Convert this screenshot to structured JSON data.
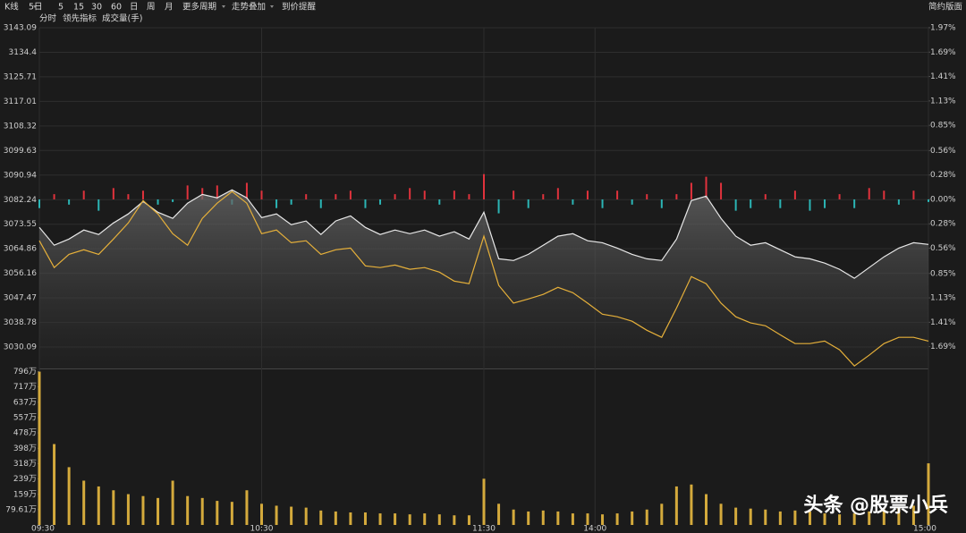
{
  "toolbar": {
    "items": [
      "K线",
      "5日",
      "5",
      "15",
      "30",
      "60",
      "日",
      "周",
      "月",
      "更多周期",
      "走势叠加",
      "到价提醒"
    ],
    "right": "简约版面"
  },
  "chart_data": [
    {
      "type": "line",
      "x": [
        0,
        4,
        8,
        12,
        16,
        20,
        24,
        28,
        32,
        36,
        40,
        44,
        48,
        52,
        56,
        60,
        64,
        68,
        72,
        76,
        80,
        84,
        88,
        92,
        96,
        100,
        104,
        108,
        112,
        116,
        120,
        124,
        128,
        132,
        136,
        140,
        144,
        148,
        152,
        156,
        160,
        164,
        168,
        172,
        176,
        180,
        184,
        188,
        192,
        196,
        200,
        204,
        208,
        212,
        216,
        220,
        224,
        228,
        232,
        236,
        240
      ],
      "xlim": [
        0,
        240
      ],
      "ylim": [
        3022.5,
        3143.09
      ],
      "yticks": [
        3143.09,
        3134.4,
        3125.71,
        3117.01,
        3108.32,
        3099.63,
        3090.94,
        3082.24,
        3073.55,
        3064.86,
        3056.16,
        3047.47,
        3038.78,
        3030.09
      ],
      "y2lim": [
        -1.94,
        1.97
      ],
      "y2ticks": [
        {
          "value": 1.97,
          "label": "1.97%"
        },
        {
          "value": 1.69,
          "label": "1.69%"
        },
        {
          "value": 1.41,
          "label": "1.41%"
        },
        {
          "value": 1.13,
          "label": "1.13%"
        },
        {
          "value": 0.85,
          "label": "0.85%"
        },
        {
          "value": 0.56,
          "label": "0.56%"
        },
        {
          "value": 0.28,
          "label": "0.28%"
        },
        {
          "value": 0,
          "label": "0.00%"
        },
        {
          "value": -0.28,
          "label": "0.28%"
        },
        {
          "value": -0.56,
          "label": "0.56%"
        },
        {
          "value": -0.85,
          "label": "0.85%"
        },
        {
          "value": -1.13,
          "label": "1.13%"
        },
        {
          "value": -1.41,
          "label": "1.41%"
        },
        {
          "value": -1.69,
          "label": "1.69%"
        }
      ],
      "grid": true,
      "up_color": "#ff3b3b",
      "down_color": "#1fcf5a",
      "series": [
        {
          "name": "分时",
          "color": "#e8e8e8",
          "values": [
            3072.4,
            3066.1,
            3068.3,
            3071.5,
            3069.9,
            3074.0,
            3077.2,
            3081.6,
            3077.8,
            3075.6,
            3081.0,
            3084.1,
            3082.9,
            3085.7,
            3082.9,
            3075.9,
            3077.2,
            3073.4,
            3074.7,
            3069.9,
            3074.7,
            3076.5,
            3072.4,
            3069.9,
            3071.5,
            3070.2,
            3071.5,
            3069.3,
            3070.9,
            3068.3,
            3077.8,
            3061.3,
            3060.7,
            3062.9,
            3066.1,
            3069.3,
            3070.2,
            3067.7,
            3067.0,
            3065.1,
            3062.9,
            3061.3,
            3060.7,
            3068.3,
            3081.9,
            3083.5,
            3075.6,
            3069.3,
            3066.1,
            3067.0,
            3064.5,
            3062.0,
            3061.3,
            3059.8,
            3057.6,
            3054.4,
            3058.2,
            3062.0,
            3065.1,
            3067.0,
            3066.4
          ]
        },
        {
          "name": "领先指标",
          "color": "#e6b03a",
          "values": [
            3067.7,
            3058.2,
            3062.9,
            3064.5,
            3062.9,
            3068.3,
            3074.0,
            3081.9,
            3077.2,
            3070.2,
            3066.1,
            3075.6,
            3081.0,
            3085.1,
            3081.0,
            3070.2,
            3071.5,
            3067.0,
            3067.7,
            3062.9,
            3064.5,
            3065.1,
            3058.8,
            3058.2,
            3059.1,
            3057.6,
            3058.2,
            3056.6,
            3053.4,
            3052.5,
            3069.3,
            3051.9,
            3045.6,
            3047.1,
            3048.7,
            3051.2,
            3049.3,
            3045.6,
            3041.7,
            3040.8,
            3039.2,
            3036.0,
            3033.5,
            3043.9,
            3055.0,
            3052.5,
            3045.6,
            3040.8,
            3038.6,
            3037.6,
            3034.4,
            3031.3,
            3031.3,
            3032.2,
            3029.1,
            3023.4,
            3027.2,
            3031.3,
            3033.5,
            3033.5,
            3032.2
          ]
        },
        {
          "type": "bar",
          "axis": "y2",
          "up_color": "#e0323c",
          "down_color": "#2bb5b5",
          "values": [
            -0.1,
            0.06,
            -0.06,
            0.1,
            -0.13,
            0.13,
            0.06,
            0.1,
            -0.06,
            -0.03,
            0.16,
            0.13,
            0.16,
            -0.06,
            0.19,
            0.1,
            -0.1,
            -0.06,
            0.06,
            -0.1,
            0.06,
            0.1,
            -0.1,
            -0.06,
            0.06,
            0.13,
            0.1,
            -0.06,
            0.1,
            0.06,
            0.29,
            -0.16,
            0.1,
            -0.1,
            0.06,
            0.13,
            -0.06,
            0.1,
            -0.1,
            0.1,
            -0.06,
            0.06,
            -0.1,
            0.06,
            0.19,
            0.26,
            0.19,
            -0.13,
            -0.1,
            0.06,
            -0.1,
            0.1,
            -0.13,
            -0.1,
            0.06,
            -0.1,
            0.13,
            0.1,
            -0.06,
            0.1,
            -0.03
          ]
        }
      ]
    },
    {
      "type": "bar",
      "title": "成交量(手)",
      "color": "#d4aa3c",
      "x": [
        0,
        4,
        8,
        12,
        16,
        20,
        24,
        28,
        32,
        36,
        40,
        44,
        48,
        52,
        56,
        60,
        64,
        68,
        72,
        76,
        80,
        84,
        88,
        92,
        96,
        100,
        104,
        108,
        112,
        116,
        120,
        124,
        128,
        132,
        136,
        140,
        144,
        148,
        152,
        156,
        160,
        164,
        168,
        172,
        176,
        180,
        184,
        188,
        192,
        196,
        200,
        204,
        208,
        212,
        216,
        220,
        224,
        228,
        232,
        236,
        240
      ],
      "values": [
        796,
        420,
        300,
        230,
        200,
        180,
        160,
        150,
        140,
        230,
        150,
        140,
        125,
        120,
        180,
        110,
        100,
        95,
        90,
        75,
        70,
        65,
        65,
        60,
        60,
        55,
        60,
        55,
        50,
        50,
        240,
        110,
        80,
        70,
        75,
        70,
        60,
        60,
        55,
        60,
        70,
        80,
        110,
        200,
        210,
        160,
        110,
        90,
        85,
        80,
        70,
        75,
        70,
        60,
        55,
        60,
        70,
        80,
        90,
        100,
        320
      ],
      "xlim": [
        0,
        240
      ],
      "xticks": [
        {
          "value": 0,
          "label": "09:30"
        },
        {
          "value": 60,
          "label": "10:30"
        },
        {
          "value": 120,
          "label": "11:30"
        },
        {
          "value": 150,
          "label": "14:00"
        },
        {
          "value": 240,
          "label": "15:00"
        }
      ],
      "ylim": [
        0,
        808
      ],
      "yticks": [
        {
          "value": 796,
          "label": "796万"
        },
        {
          "value": 717,
          "label": "717万"
        },
        {
          "value": 637,
          "label": "637万"
        },
        {
          "value": 557,
          "label": "557万"
        },
        {
          "value": 478,
          "label": "478万"
        },
        {
          "value": 398,
          "label": "398万"
        },
        {
          "value": 318,
          "label": "318万"
        },
        {
          "value": 239,
          "label": "239万"
        },
        {
          "value": 159,
          "label": "159万"
        },
        {
          "value": 79.61,
          "label": "79.61万"
        }
      ]
    }
  ],
  "watermark": "头条 @股票小兵"
}
